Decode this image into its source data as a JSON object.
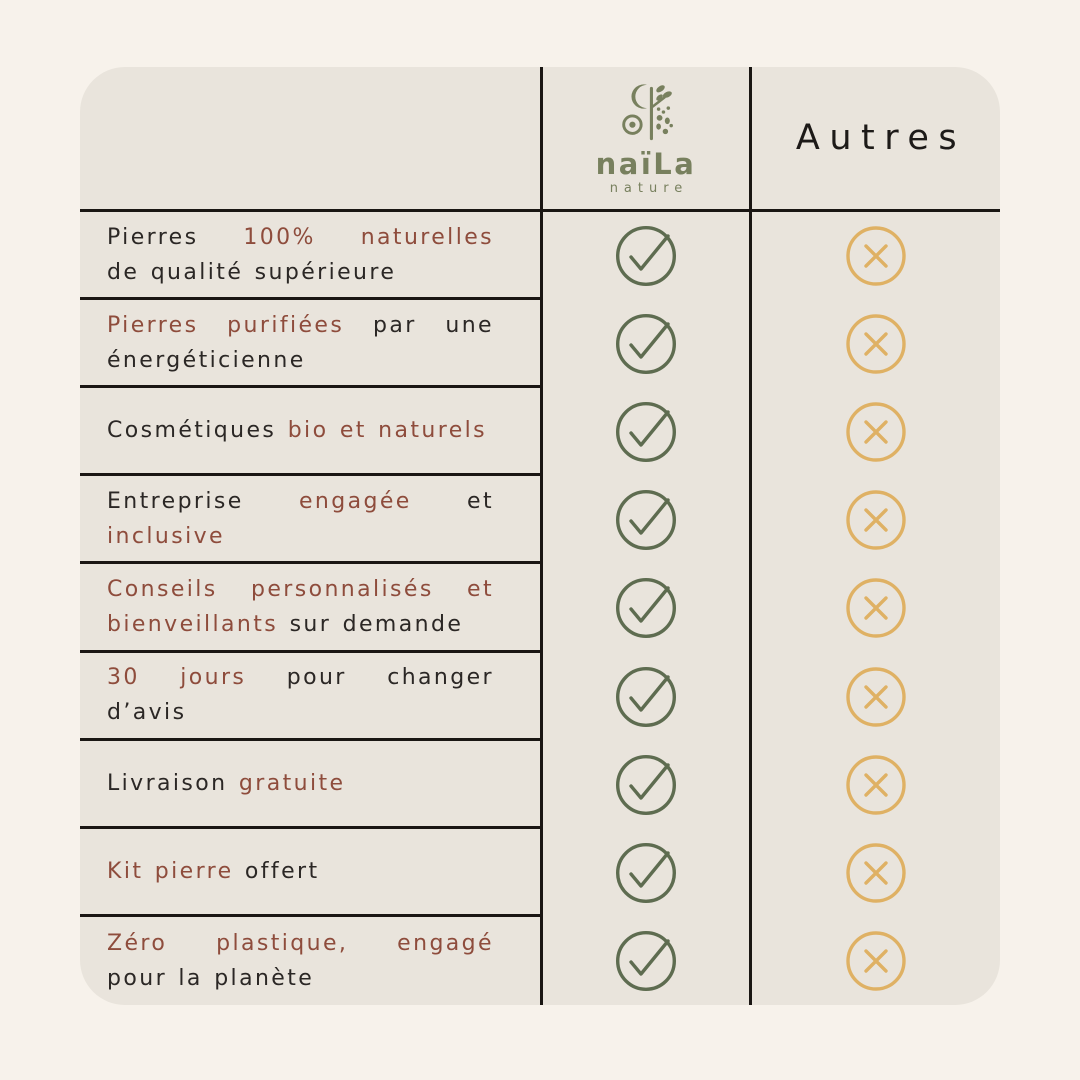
{
  "colors": {
    "background": "#f7f2eb",
    "card_background": "#e9e4dc",
    "grid_line": "#1a1613",
    "text_dark": "#2b2725",
    "text_accent": "#8e4c3c",
    "brand_green": "#78805e",
    "check_green": "#5e6c50",
    "cross_gold": "#dfb164"
  },
  "header": {
    "brand": {
      "wordmark": "naïLa",
      "tagline": "nature",
      "logo_icon": "naila-nature-logo"
    },
    "competitor_label": "Autres"
  },
  "icons": {
    "positive": "check-circle-icon",
    "negative": "cross-circle-icon"
  },
  "rows": [
    {
      "naila": "check",
      "autres": "cross",
      "lines": [
        [
          {
            "t": "Pierres ",
            "accent": false
          },
          {
            "t": "100% naturelles",
            "accent": true
          }
        ],
        [
          {
            "t": "de qualité supérieure",
            "accent": false
          }
        ]
      ]
    },
    {
      "naila": "check",
      "autres": "cross",
      "lines": [
        [
          {
            "t": "Pierres purifiées",
            "accent": true
          },
          {
            "t": " par une",
            "accent": false
          }
        ],
        [
          {
            "t": "énergéticienne",
            "accent": false
          }
        ]
      ]
    },
    {
      "naila": "check",
      "autres": "cross",
      "lines": [
        [
          {
            "t": "Cosmétiques ",
            "accent": false
          },
          {
            "t": "bio et naturels",
            "accent": true
          }
        ]
      ]
    },
    {
      "naila": "check",
      "autres": "cross",
      "lines": [
        [
          {
            "t": "Entreprise ",
            "accent": false
          },
          {
            "t": "engagée",
            "accent": true
          },
          {
            "t": " et",
            "accent": false
          }
        ],
        [
          {
            "t": "inclusive",
            "accent": true
          }
        ]
      ]
    },
    {
      "naila": "check",
      "autres": "cross",
      "lines": [
        [
          {
            "t": "Conseils personnalisés et",
            "accent": true
          }
        ],
        [
          {
            "t": "bienveillants",
            "accent": true
          },
          {
            "t": " sur demande",
            "accent": false
          }
        ]
      ]
    },
    {
      "naila": "check",
      "autres": "cross",
      "lines": [
        [
          {
            "t": "30 jours",
            "accent": true
          },
          {
            "t": " pour changer",
            "accent": false
          }
        ],
        [
          {
            "t": "d’avis",
            "accent": false
          }
        ]
      ]
    },
    {
      "naila": "check",
      "autres": "cross",
      "lines": [
        [
          {
            "t": "Livraison ",
            "accent": false
          },
          {
            "t": "gratuite",
            "accent": true
          }
        ]
      ]
    },
    {
      "naila": "check",
      "autres": "cross",
      "lines": [
        [
          {
            "t": "Kit pierre",
            "accent": true
          },
          {
            "t": " offert",
            "accent": false
          }
        ]
      ]
    },
    {
      "naila": "check",
      "autres": "cross",
      "lines": [
        [
          {
            "t": "Zéro plastique, engagé",
            "accent": true
          }
        ],
        [
          {
            "t": "pour la planète",
            "accent": false
          }
        ]
      ]
    }
  ]
}
